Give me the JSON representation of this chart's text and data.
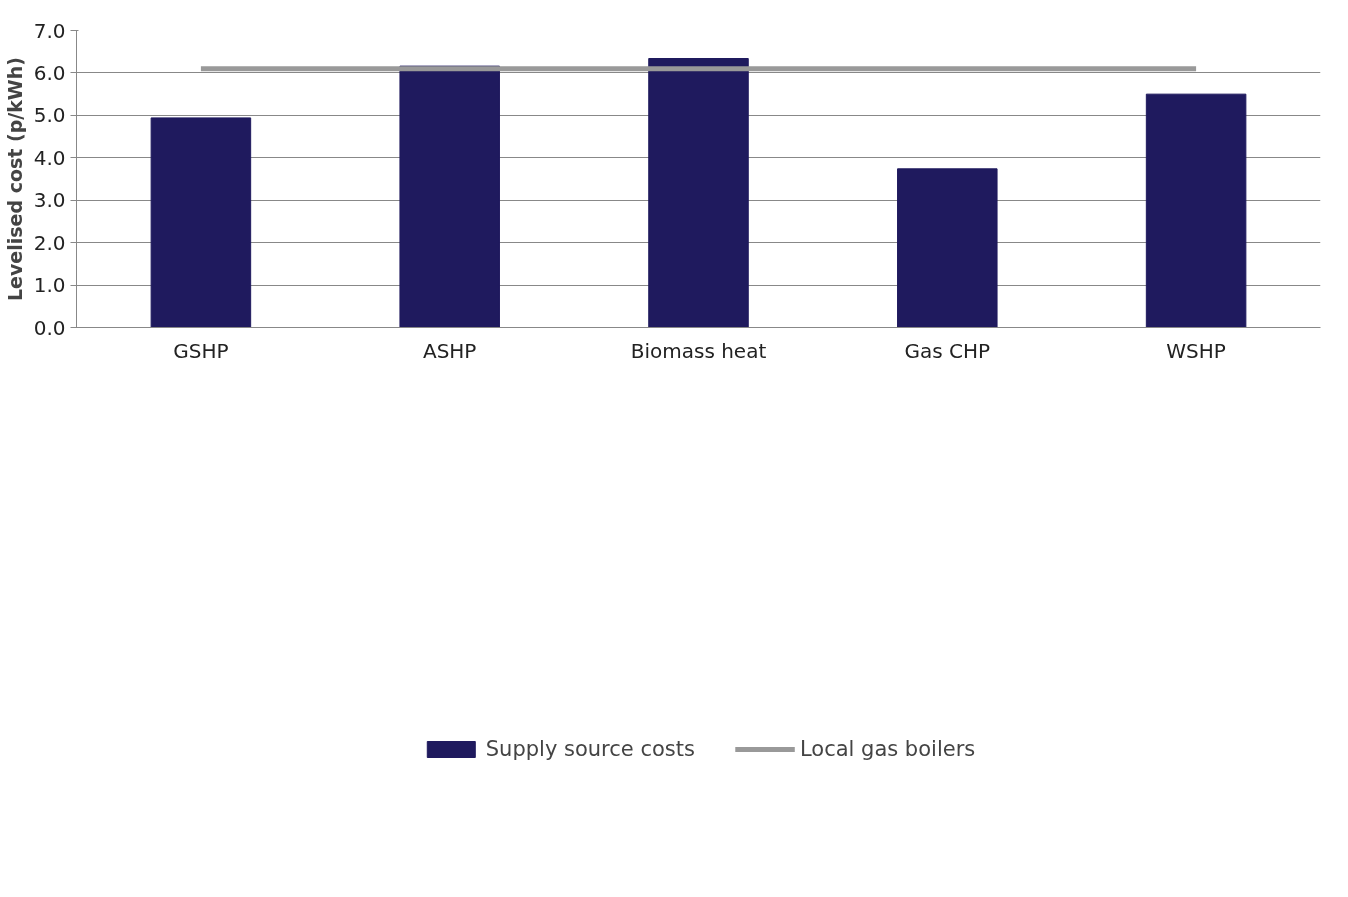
{
  "chart_data": {
    "type": "bar",
    "ylabel": "Levelised cost (p/kWh)",
    "categories": [
      "GSHP",
      "ASHP",
      "Biomass heat",
      "Gas CHP",
      "WSHP"
    ],
    "series": [
      {
        "name": "Supply source costs",
        "color": "#1f1a5e",
        "values": [
          4.94,
          6.16,
          6.34,
          3.74,
          5.5
        ]
      },
      {
        "name": "Local gas boilers",
        "type": "line",
        "color": "#999999",
        "values": [
          6.1,
          6.1,
          6.1,
          6.1,
          6.1
        ]
      }
    ],
    "ylim": [
      0,
      7
    ],
    "yticks": [
      {
        "value": 0,
        "label": "0.0"
      },
      {
        "value": 1,
        "label": "1.0"
      },
      {
        "value": 2,
        "label": "2.0"
      },
      {
        "value": 3,
        "label": "3.0"
      },
      {
        "value": 4,
        "label": "4.0"
      },
      {
        "value": 5,
        "label": "5.0"
      },
      {
        "value": 6,
        "label": "6.0"
      },
      {
        "value": 7,
        "label": "7.0"
      }
    ],
    "grid": "y",
    "legend": "bottom"
  }
}
